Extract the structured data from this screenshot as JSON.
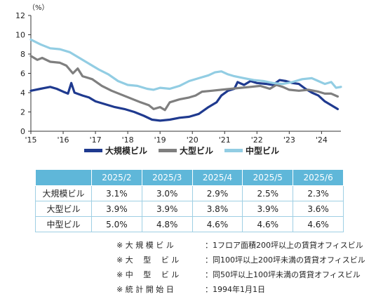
{
  "chart_data": {
    "type": "line",
    "unit": "（%）",
    "ylim": [
      0,
      12
    ],
    "yticks": [
      0,
      2,
      4,
      6,
      8,
      10,
      12
    ],
    "xlim": [
      2015.0,
      2024.6
    ],
    "xticks": [
      {
        "value": 2015,
        "label": "'15"
      },
      {
        "value": 2016,
        "label": "'16"
      },
      {
        "value": 2017,
        "label": "'17"
      },
      {
        "value": 2018,
        "label": "'18"
      },
      {
        "value": 2019,
        "label": "'19"
      },
      {
        "value": 2020,
        "label": "'20"
      },
      {
        "value": 2021,
        "label": "'21"
      },
      {
        "value": 2022,
        "label": "'22"
      },
      {
        "value": 2023,
        "label": "'23"
      },
      {
        "value": 2024,
        "label": "'24"
      }
    ],
    "grid": false,
    "legend_position": "bottom",
    "series": [
      {
        "name": "大規模ビル",
        "color": "#1f3a8f",
        "points": [
          [
            2015.0,
            4.2
          ],
          [
            2015.3,
            4.4
          ],
          [
            2015.6,
            4.6
          ],
          [
            2015.8,
            4.4
          ],
          [
            2016.0,
            4.1
          ],
          [
            2016.15,
            3.9
          ],
          [
            2016.25,
            5.0
          ],
          [
            2016.35,
            4.0
          ],
          [
            2016.6,
            3.7
          ],
          [
            2016.8,
            3.5
          ],
          [
            2017.0,
            3.1
          ],
          [
            2017.3,
            2.8
          ],
          [
            2017.6,
            2.5
          ],
          [
            2017.9,
            2.3
          ],
          [
            2018.2,
            2.0
          ],
          [
            2018.5,
            1.6
          ],
          [
            2018.75,
            1.2
          ],
          [
            2019.0,
            1.1
          ],
          [
            2019.3,
            1.2
          ],
          [
            2019.6,
            1.4
          ],
          [
            2019.9,
            1.5
          ],
          [
            2020.2,
            1.8
          ],
          [
            2020.5,
            2.5
          ],
          [
            2020.75,
            3.0
          ],
          [
            2020.9,
            3.7
          ],
          [
            2021.1,
            4.2
          ],
          [
            2021.3,
            4.4
          ],
          [
            2021.4,
            5.1
          ],
          [
            2021.6,
            4.8
          ],
          [
            2021.8,
            5.2
          ],
          [
            2022.0,
            5.0
          ],
          [
            2022.3,
            4.9
          ],
          [
            2022.5,
            4.8
          ],
          [
            2022.7,
            5.3
          ],
          [
            2022.9,
            5.2
          ],
          [
            2023.1,
            5.0
          ],
          [
            2023.3,
            4.9
          ],
          [
            2023.5,
            4.4
          ],
          [
            2023.7,
            4.0
          ],
          [
            2023.9,
            3.7
          ],
          [
            2024.1,
            3.1
          ],
          [
            2024.3,
            2.7
          ],
          [
            2024.5,
            2.3
          ]
        ]
      },
      {
        "name": "大型ビル",
        "color": "#7f7f7f",
        "points": [
          [
            2015.0,
            7.8
          ],
          [
            2015.2,
            7.4
          ],
          [
            2015.35,
            7.6
          ],
          [
            2015.6,
            7.2
          ],
          [
            2015.9,
            7.1
          ],
          [
            2016.1,
            6.8
          ],
          [
            2016.3,
            6.0
          ],
          [
            2016.45,
            6.5
          ],
          [
            2016.6,
            5.7
          ],
          [
            2016.9,
            5.4
          ],
          [
            2017.2,
            4.7
          ],
          [
            2017.5,
            4.2
          ],
          [
            2017.8,
            3.8
          ],
          [
            2018.1,
            3.4
          ],
          [
            2018.4,
            3.0
          ],
          [
            2018.65,
            2.7
          ],
          [
            2018.8,
            2.3
          ],
          [
            2019.0,
            2.5
          ],
          [
            2019.15,
            2.2
          ],
          [
            2019.3,
            3.0
          ],
          [
            2019.6,
            3.3
          ],
          [
            2019.9,
            3.5
          ],
          [
            2020.1,
            3.7
          ],
          [
            2020.3,
            4.1
          ],
          [
            2020.6,
            4.2
          ],
          [
            2020.9,
            4.3
          ],
          [
            2021.2,
            4.4
          ],
          [
            2021.5,
            4.5
          ],
          [
            2021.8,
            4.6
          ],
          [
            2022.1,
            4.7
          ],
          [
            2022.4,
            4.4
          ],
          [
            2022.6,
            4.8
          ],
          [
            2022.8,
            4.6
          ],
          [
            2023.0,
            4.3
          ],
          [
            2023.3,
            4.2
          ],
          [
            2023.6,
            4.3
          ],
          [
            2023.9,
            4.1
          ],
          [
            2024.1,
            3.9
          ],
          [
            2024.3,
            3.9
          ],
          [
            2024.5,
            3.6
          ]
        ]
      },
      {
        "name": "中型ビル",
        "color": "#92cde3",
        "points": [
          [
            2015.0,
            9.5
          ],
          [
            2015.3,
            9.0
          ],
          [
            2015.6,
            8.6
          ],
          [
            2015.9,
            8.5
          ],
          [
            2016.2,
            8.2
          ],
          [
            2016.5,
            7.6
          ],
          [
            2016.8,
            7.0
          ],
          [
            2017.1,
            6.4
          ],
          [
            2017.4,
            5.9
          ],
          [
            2017.7,
            5.2
          ],
          [
            2018.0,
            4.8
          ],
          [
            2018.3,
            4.7
          ],
          [
            2018.6,
            4.4
          ],
          [
            2018.8,
            4.3
          ],
          [
            2019.0,
            4.5
          ],
          [
            2019.3,
            4.4
          ],
          [
            2019.6,
            4.7
          ],
          [
            2019.9,
            5.2
          ],
          [
            2020.2,
            5.5
          ],
          [
            2020.5,
            5.8
          ],
          [
            2020.7,
            6.1
          ],
          [
            2020.9,
            6.2
          ],
          [
            2021.1,
            5.9
          ],
          [
            2021.3,
            5.7
          ],
          [
            2021.6,
            5.5
          ],
          [
            2021.9,
            5.3
          ],
          [
            2022.2,
            5.2
          ],
          [
            2022.5,
            5.0
          ],
          [
            2022.8,
            4.9
          ],
          [
            2023.1,
            5.1
          ],
          [
            2023.4,
            5.4
          ],
          [
            2023.7,
            5.5
          ],
          [
            2023.9,
            5.2
          ],
          [
            2024.1,
            4.9
          ],
          [
            2024.3,
            5.1
          ],
          [
            2024.45,
            4.5
          ],
          [
            2024.6,
            4.6
          ]
        ]
      }
    ]
  },
  "table": {
    "headers": [
      "2025/2",
      "2025/3",
      "2025/4",
      "2025/5",
      "2025/6"
    ],
    "rows": [
      {
        "label": "大規模ビル",
        "values": [
          "3.1%",
          "3.0%",
          "2.9%",
          "2.5%",
          "2.3%"
        ]
      },
      {
        "label": "大型ビル",
        "values": [
          "3.9%",
          "3.9%",
          "3.8%",
          "3.9%",
          "3.6%"
        ]
      },
      {
        "label": "中型ビル",
        "values": [
          "5.0%",
          "4.8%",
          "4.6%",
          "4.6%",
          "4.6%"
        ]
      }
    ]
  },
  "notes": [
    {
      "label": "※ 大 規 模 ビ ル",
      "desc": "：1フロア面積200坪以上の賃貸オフィスビル"
    },
    {
      "label": "※ 大 　型 　ビ ル",
      "desc": "：同100坪以上200坪未満の賃貸オフィスビル"
    },
    {
      "label": "※ 中 　型 　ビ ル",
      "desc": "：同50坪以上100坪未満の賃貸オフィスビル"
    },
    {
      "label": "※ 統 計 開 始 日",
      "desc": "：1994年1月1日"
    }
  ]
}
